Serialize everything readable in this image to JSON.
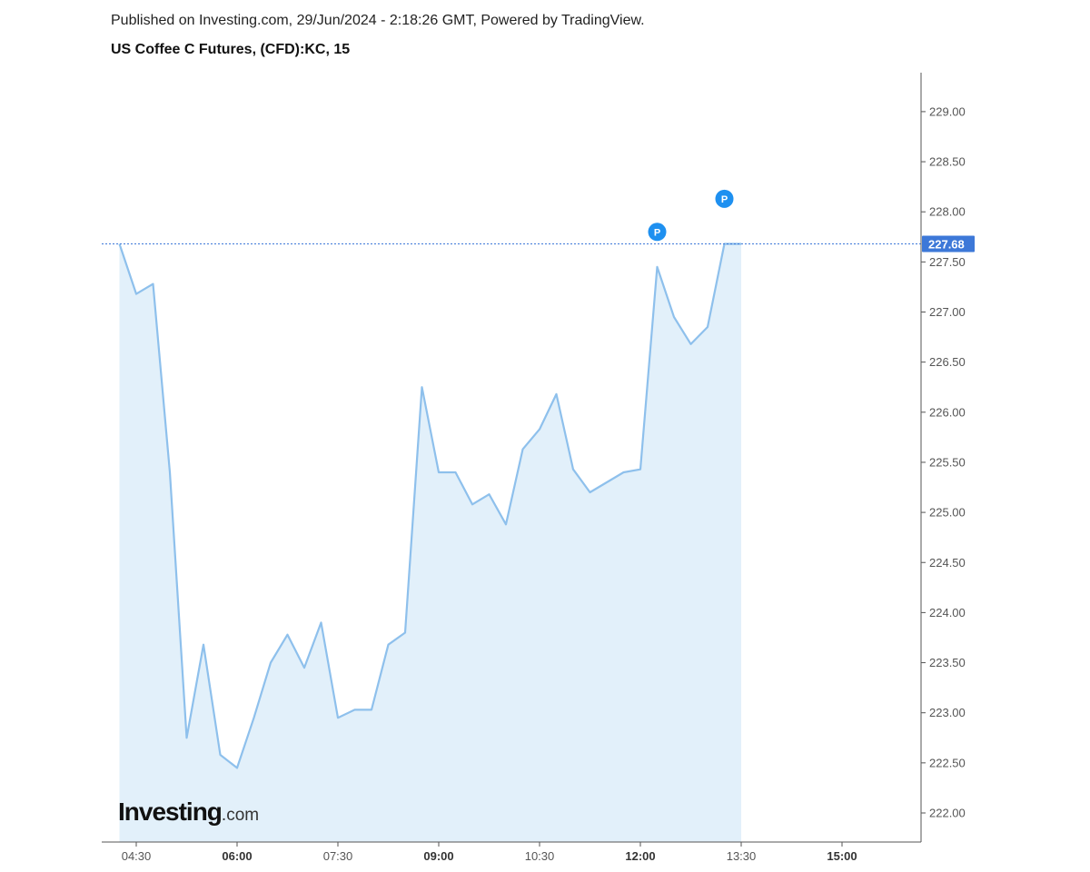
{
  "header": {
    "published": "Published on Investing.com, 29/Jun/2024 - 2:18:26 GMT, Powered by TradingView.",
    "title": "US Coffee C Futures, (CFD):KC, 15"
  },
  "logo": {
    "main": "Investing",
    "suffix": ".com"
  },
  "colors": {
    "line": "#8ec0ec",
    "area": "#e2f0fa",
    "last_price_badge": "#3d78d8",
    "marker": "#1e90f0",
    "axis": "#555555"
  },
  "chart_data": {
    "type": "area",
    "title": "US Coffee C Futures, (CFD):KC, 15",
    "xlabel": "",
    "ylabel": "",
    "ylim": [
      221.75,
      229.4
    ],
    "grid": false,
    "x_ticks": [
      {
        "label": "04:30",
        "hour": 4.5,
        "bold": false
      },
      {
        "label": "06:00",
        "hour": 6.0,
        "bold": true
      },
      {
        "label": "07:30",
        "hour": 7.5,
        "bold": false
      },
      {
        "label": "09:00",
        "hour": 9.0,
        "bold": true
      },
      {
        "label": "10:30",
        "hour": 10.5,
        "bold": false
      },
      {
        "label": "12:00",
        "hour": 12.0,
        "bold": true
      },
      {
        "label": "13:30",
        "hour": 13.5,
        "bold": false
      },
      {
        "label": "15:00",
        "hour": 15.0,
        "bold": true
      }
    ],
    "y_ticks": [
      "222.00",
      "222.50",
      "223.00",
      "223.50",
      "224.00",
      "224.50",
      "225.00",
      "225.50",
      "226.00",
      "226.50",
      "227.00",
      "227.50",
      "228.00",
      "228.50",
      "229.00"
    ],
    "last_price": "227.68",
    "series": [
      {
        "x": [
          4.25,
          4.5,
          4.75,
          5.0,
          5.25,
          5.5,
          5.75,
          6.0,
          6.25,
          6.5,
          6.75,
          7.0,
          7.25,
          7.5,
          7.75,
          8.0,
          8.25,
          8.5,
          8.75,
          9.0,
          9.25,
          9.5,
          9.75,
          10.0,
          10.25,
          10.5,
          10.75,
          11.0,
          11.25,
          11.5,
          11.75,
          12.0,
          12.25,
          12.5,
          12.75,
          13.0,
          13.25,
          13.5
        ],
        "values": [
          227.68,
          227.18,
          227.28,
          225.4,
          222.75,
          223.68,
          222.58,
          222.45,
          222.95,
          223.5,
          223.78,
          223.45,
          223.9,
          222.95,
          223.03,
          223.03,
          223.68,
          223.8,
          226.25,
          225.4,
          225.4,
          225.08,
          225.18,
          224.88,
          225.63,
          225.83,
          226.18,
          225.43,
          225.2,
          225.3,
          225.4,
          225.43,
          227.45,
          226.95,
          226.68,
          226.85,
          227.68,
          227.68
        ]
      }
    ],
    "markers": [
      {
        "label": "P",
        "x": 12.25,
        "value": 227.8
      },
      {
        "label": "P",
        "x": 13.25,
        "value": 228.13
      }
    ]
  }
}
